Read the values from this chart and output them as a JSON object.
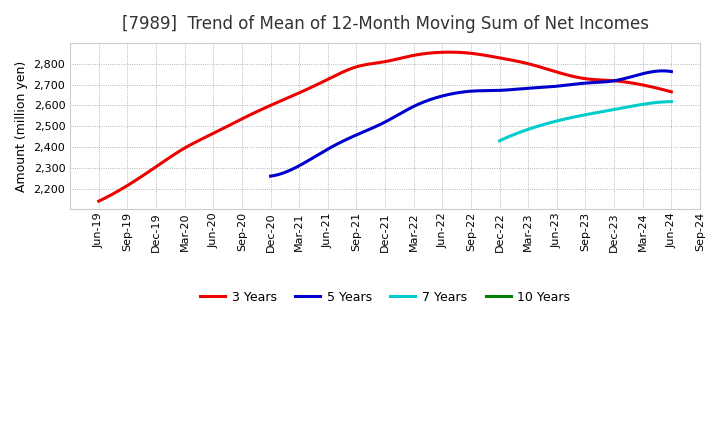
{
  "title": "[7989]  Trend of Mean of 12-Month Moving Sum of Net Incomes",
  "ylabel": "Amount (million yen)",
  "background_color": "#ffffff",
  "plot_bg_color": "#ffffff",
  "grid_color": "#888888",
  "series": {
    "3 Years": {
      "color": "#ee0000",
      "x": [
        "Jun-19",
        "Sep-19",
        "Dec-19",
        "Mar-20",
        "Jun-20",
        "Sep-20",
        "Dec-20",
        "Mar-21",
        "Jun-21",
        "Sep-21",
        "Dec-21",
        "Mar-22",
        "Jun-22",
        "Sep-22",
        "Dec-22",
        "Mar-23",
        "Jun-23",
        "Sep-23",
        "Dec-23",
        "Mar-24",
        "Jun-24"
      ],
      "y": [
        2140,
        2215,
        2305,
        2395,
        2465,
        2535,
        2600,
        2660,
        2725,
        2785,
        2810,
        2840,
        2855,
        2850,
        2828,
        2800,
        2760,
        2728,
        2718,
        2698,
        2665
      ]
    },
    "5 Years": {
      "color": "#0000cc",
      "x": [
        "Dec-20",
        "Mar-21",
        "Jun-21",
        "Sep-21",
        "Dec-21",
        "Mar-22",
        "Jun-22",
        "Sep-22",
        "Dec-22",
        "Mar-23",
        "Jun-23",
        "Sep-23",
        "Dec-23",
        "Mar-24",
        "Jun-24"
      ],
      "y": [
        2260,
        2310,
        2390,
        2458,
        2520,
        2595,
        2645,
        2668,
        2672,
        2682,
        2692,
        2707,
        2718,
        2752,
        2762
      ]
    },
    "7 Years": {
      "color": "#00cccc",
      "x": [
        "Dec-22",
        "Mar-23",
        "Jun-23",
        "Sep-23",
        "Dec-23",
        "Mar-24",
        "Jun-24"
      ],
      "y": [
        2430,
        2485,
        2525,
        2555,
        2580,
        2605,
        2618
      ]
    },
    "10 Years": {
      "color": "#008000",
      "x": [],
      "y": []
    }
  },
  "x_ticks": [
    "Jun-19",
    "Sep-19",
    "Dec-19",
    "Mar-20",
    "Jun-20",
    "Sep-20",
    "Dec-20",
    "Mar-21",
    "Jun-21",
    "Sep-21",
    "Dec-21",
    "Mar-22",
    "Jun-22",
    "Sep-22",
    "Dec-22",
    "Mar-23",
    "Jun-23",
    "Sep-23",
    "Dec-23",
    "Mar-24",
    "Jun-24",
    "Sep-24"
  ],
  "ylim": [
    2100,
    2900
  ],
  "yticks": [
    2200,
    2300,
    2400,
    2500,
    2600,
    2700,
    2800
  ],
  "title_fontsize": 12,
  "axis_fontsize": 9,
  "tick_fontsize": 8,
  "legend_fontsize": 9,
  "linewidth": 2.2
}
